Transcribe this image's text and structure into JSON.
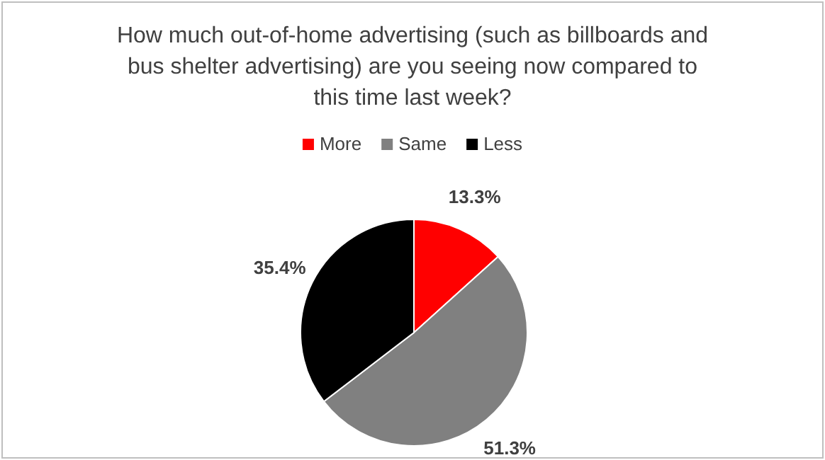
{
  "chart_data": {
    "type": "pie",
    "title": "How much out-of-home advertising (such as billboards and bus shelter advertising) are you seeing now compared to this time last week?",
    "categories": [
      "More",
      "Same",
      "Less"
    ],
    "values": [
      13.3,
      51.3,
      35.4
    ],
    "colors": [
      "#ff0000",
      "#808080",
      "#000000"
    ],
    "value_labels": [
      "13.3%",
      "51.3%",
      "35.4%"
    ],
    "legend": "top"
  }
}
